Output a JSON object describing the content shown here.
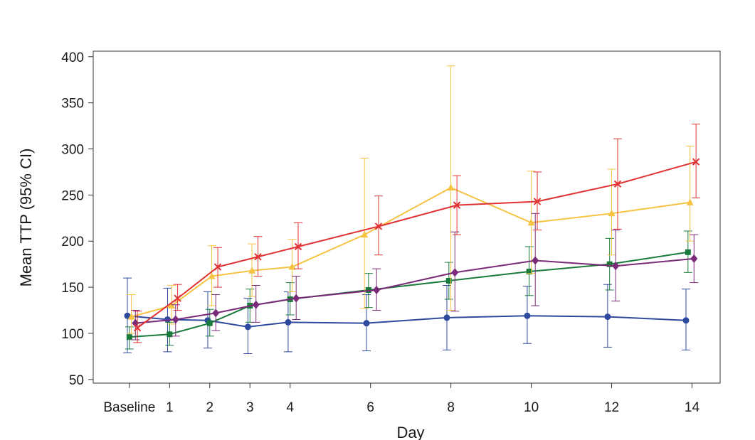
{
  "chart_data": {
    "type": "line",
    "title": "",
    "xlabel": "Day",
    "ylabel": "Mean TTP (95% CI)",
    "ylim": [
      46,
      406
    ],
    "yticks": [
      50,
      100,
      150,
      200,
      250,
      300,
      350,
      400
    ],
    "xlim": [
      -0.9,
      14.7
    ],
    "xticks": [
      {
        "value": 0,
        "label": "Baseline"
      },
      {
        "value": 1,
        "label": "1"
      },
      {
        "value": 2,
        "label": "2"
      },
      {
        "value": 3,
        "label": "3"
      },
      {
        "value": 4,
        "label": "4"
      },
      {
        "value": 6,
        "label": "6"
      },
      {
        "value": 8,
        "label": "8"
      },
      {
        "value": 10,
        "label": "10"
      },
      {
        "value": 12,
        "label": "12"
      },
      {
        "value": 14,
        "label": "14"
      }
    ],
    "grid": false,
    "series": [
      {
        "name": "Blue",
        "color": "#2e4a9e",
        "marker": "circle",
        "x": [
          -0.05,
          0.95,
          1.95,
          2.95,
          3.95,
          5.9,
          7.9,
          9.9,
          11.9,
          13.85
        ],
        "y": [
          119,
          115,
          114,
          107,
          112,
          111,
          117,
          119,
          118,
          114
        ],
        "lower": [
          79,
          80,
          84,
          78,
          80,
          81,
          82,
          89,
          85,
          82
        ],
        "upper": [
          160,
          149,
          145,
          138,
          145,
          142,
          152,
          151,
          153,
          148
        ]
      },
      {
        "name": "Green",
        "color": "#1a7a3c",
        "marker": "square",
        "x": [
          0.0,
          1.0,
          2.0,
          3.0,
          4.0,
          5.95,
          7.95,
          9.95,
          11.95,
          13.9
        ],
        "y": [
          96,
          99,
          111,
          130,
          137,
          147,
          157,
          167,
          175,
          188
        ],
        "lower": [
          83,
          87,
          97,
          112,
          120,
          128,
          137,
          141,
          147,
          166
        ],
        "upper": [
          107,
          112,
          126,
          148,
          155,
          165,
          177,
          194,
          203,
          211
        ]
      },
      {
        "name": "Yellow",
        "color": "#f5c242",
        "marker": "triangle",
        "x": [
          0.05,
          1.05,
          2.05,
          3.05,
          4.05,
          5.85,
          8.0,
          10.0,
          12.0,
          13.95
        ],
        "y": [
          118,
          130,
          162,
          168,
          172,
          207,
          258,
          220,
          230,
          242
        ],
        "lower": [
          100,
          110,
          130,
          140,
          145,
          127,
          125,
          165,
          185,
          200
        ],
        "upper": [
          142,
          152,
          195,
          197,
          202,
          290,
          390,
          276,
          278,
          303
        ]
      },
      {
        "name": "Purple",
        "color": "#7a2a78",
        "marker": "diamond",
        "x": [
          0.15,
          1.15,
          2.15,
          3.15,
          4.15,
          6.15,
          8.1,
          10.1,
          12.1,
          14.05
        ],
        "y": [
          111,
          115,
          122,
          131,
          138,
          147,
          166,
          179,
          173,
          181
        ],
        "lower": [
          93,
          97,
          103,
          112,
          115,
          125,
          124,
          130,
          135,
          155
        ],
        "upper": [
          125,
          131,
          142,
          152,
          162,
          170,
          210,
          230,
          212,
          207
        ]
      },
      {
        "name": "Red",
        "color": "#e03232",
        "marker": "x",
        "x": [
          0.2,
          1.2,
          2.2,
          3.2,
          4.2,
          6.2,
          8.15,
          10.15,
          12.15,
          14.1
        ],
        "y": [
          106,
          138,
          172,
          183,
          194,
          216,
          239,
          243,
          262,
          286
        ],
        "lower": [
          90,
          125,
          150,
          162,
          170,
          185,
          207,
          212,
          213,
          247
        ],
        "upper": [
          124,
          153,
          193,
          205,
          220,
          249,
          271,
          275,
          311,
          327
        ]
      }
    ]
  }
}
